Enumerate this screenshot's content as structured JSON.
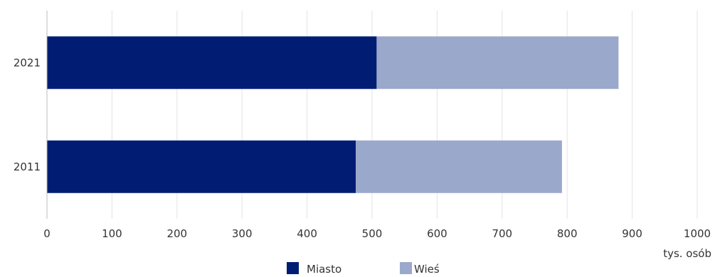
{
  "chart_data": {
    "type": "bar",
    "orientation": "horizontal",
    "stacked": true,
    "categories": [
      "2021",
      "2011"
    ],
    "series": [
      {
        "name": "Miasto",
        "values": [
          507,
          475
        ],
        "color": "#001d73"
      },
      {
        "name": "Wieś",
        "values": [
          372,
          317
        ],
        "color": "#9aa8cb"
      }
    ],
    "xlim": [
      0,
      1000
    ],
    "x_ticks": [
      "0",
      "100",
      "200",
      "300",
      "400",
      "500",
      "600",
      "700",
      "800",
      "900",
      "1000"
    ],
    "unit_label": "tys. osób",
    "grid": true,
    "legend_position": "bottom"
  }
}
